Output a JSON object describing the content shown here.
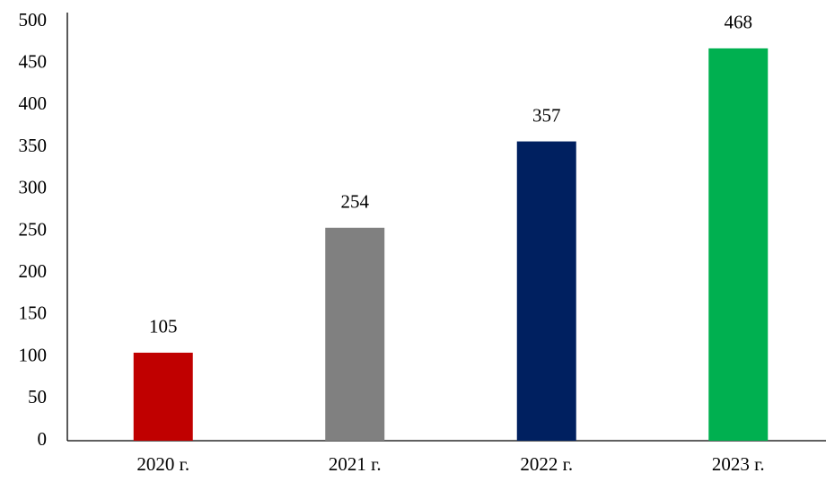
{
  "chart_data": {
    "type": "bar",
    "categories": [
      "2020 г.",
      "2021 г.",
      "2022 г.",
      "2023 г."
    ],
    "values": [
      105,
      254,
      357,
      468
    ],
    "colors": [
      "#c00000",
      "#808080",
      "#002060",
      "#00b050"
    ],
    "ylim": [
      0,
      500
    ],
    "yticks": [
      0,
      50,
      100,
      150,
      200,
      250,
      300,
      350,
      400,
      450,
      500
    ],
    "grid": false,
    "data_labels": true
  }
}
